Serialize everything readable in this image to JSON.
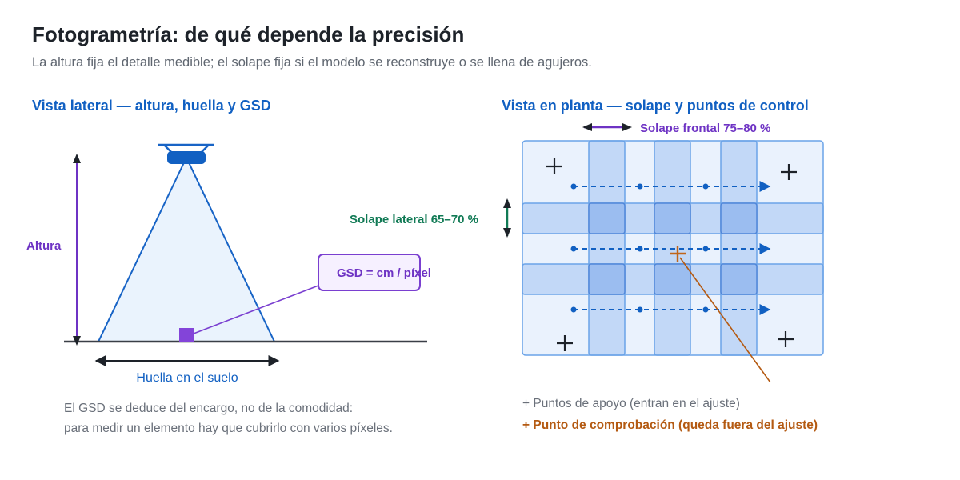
{
  "header": {
    "title": "Fotogrametría: de qué depende la precisión",
    "subtitle": "La altura fija el detalle medible; el solape fija si el modelo se reconstruye o se llena de agujeros."
  },
  "left_panel": {
    "heading": "Vista lateral — altura, huella y GSD",
    "altitude_label": "Altura",
    "footprint_label": "Huella en el suelo",
    "gsd_label": "GSD = cm / píxel",
    "note_line1": "El GSD se deduce del encargo, no de la comodidad:",
    "note_line2": "para medir un elemento hay que cubrirlo con varios píxeles."
  },
  "right_panel": {
    "heading": "Vista en planta — solape y puntos de control",
    "front_overlap_label": "Solape frontal 75–80 %",
    "side_overlap_label": "Solape lateral 65–70 %",
    "legend_gcp": "+ Puntos de apoyo (entran en el ajuste)",
    "legend_checkpoint": "+ Punto de comprobación (queda fuera del ajuste)"
  },
  "colors": {
    "heading_blue": "#1160c2",
    "purple": "#6e33c4",
    "green": "#117a55",
    "orange": "#b45a12",
    "tile_fill": "#e3eefc",
    "tile_stroke": "#6aa3e8"
  }
}
